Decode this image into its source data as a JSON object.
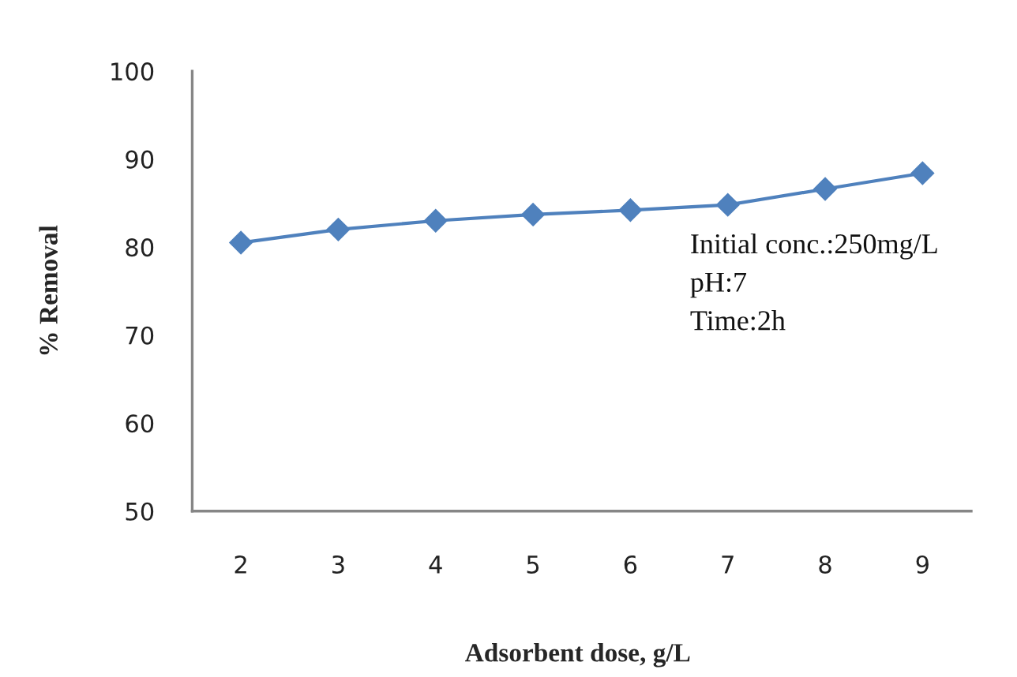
{
  "chart_data": {
    "type": "line",
    "xlabel": "Adsorbent dose, g/L",
    "ylabel": "% Removal",
    "categories": [
      "2",
      "3",
      "4",
      "5",
      "6",
      "7",
      "8",
      "9"
    ],
    "series": [
      {
        "color": "#4f81bd",
        "values": [
          80.5,
          82,
          83,
          83.7,
          84.2,
          84.8,
          86.6,
          88.4
        ]
      }
    ],
    "ylim": [
      50,
      100
    ],
    "yticks": [
      50,
      60,
      70,
      80,
      90,
      100
    ],
    "marker": "diamond",
    "line_style": "solid",
    "annotations": [
      "Initial conc.:250mg/L",
      "pH:7",
      "Time:2h"
    ]
  }
}
